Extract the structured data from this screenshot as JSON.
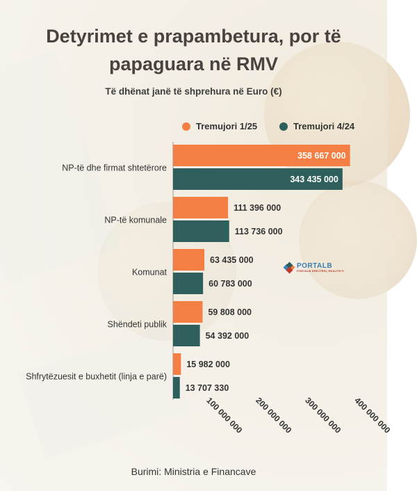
{
  "title_line1": "Detyrimet e prapambetura, por të",
  "title_line2": "papaguara në RMV",
  "subtitle": "Të dhënat janë të shprehura në  Euro (€)",
  "footer": "Burimi: Ministria e Financave",
  "logo": {
    "name": "PORTALB",
    "sub": "PORTALB DREJTËSI, REALITETI"
  },
  "colors": {
    "series1": "#f47f44",
    "series2": "#2e5f5c",
    "label_text": "#333333",
    "bar_label_inner": "#ffffff"
  },
  "chart_data": {
    "type": "bar",
    "orientation": "horizontal",
    "categories": [
      "NP-të dhe firmat shtetërore",
      "NP-të komunale",
      "Komunat",
      "Shëndeti publik",
      "Shfrytëzuesit e buxhetit (linja e parë)"
    ],
    "series": [
      {
        "name": "Tremujori 1/25",
        "values": [
          358667000,
          111396000,
          63435000,
          59808000,
          15982000
        ]
      },
      {
        "name": "Tremujori 4/24",
        "values": [
          343435000,
          113736000,
          60783000,
          54392000,
          13707330
        ]
      }
    ],
    "value_labels": [
      [
        "358 667 000",
        "111 396 000",
        "63 435 000",
        "59 808 000",
        "15 982 000"
      ],
      [
        "343 435 000",
        "113 736 000",
        "60 783 000",
        "54 392 000",
        "13 707 330"
      ]
    ],
    "x_ticks": [
      100000000,
      200000000,
      300000000,
      400000000
    ],
    "x_tick_labels": [
      "100 000 000",
      "200 000 000",
      "300 000 000",
      "400 000 000"
    ],
    "xlim": [
      0,
      400000000
    ],
    "grid": false,
    "legend_position": "top"
  }
}
